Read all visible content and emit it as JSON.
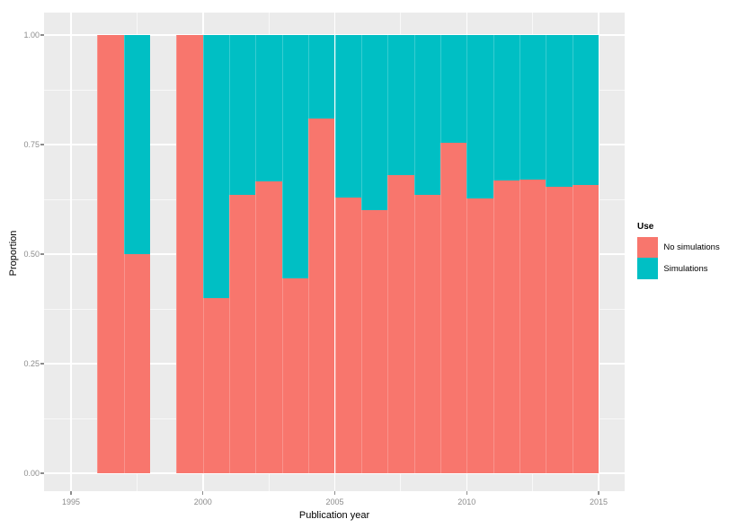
{
  "chart_data": {
    "type": "bar",
    "subtype": "stacked-proportion",
    "title": "",
    "xlabel": "Publication year",
    "ylabel": "Proportion",
    "grid": true,
    "legend_position": "right",
    "legend": {
      "title": "Use"
    },
    "x_domain": [
      1994,
      2016
    ],
    "ylim": [
      0,
      1
    ],
    "x_ticks": [
      {
        "v": 1995,
        "label": "1995"
      },
      {
        "v": 2000,
        "label": "2000"
      },
      {
        "v": 2005,
        "label": "2005"
      },
      {
        "v": 2010,
        "label": "2010"
      },
      {
        "v": 2015,
        "label": "2015"
      }
    ],
    "x_minor_ticks": [
      1997.5,
      2002.5,
      2007.5,
      2012.5
    ],
    "y_ticks": [
      {
        "v": 0.0,
        "label": "0.00"
      },
      {
        "v": 0.25,
        "label": "0.25"
      },
      {
        "v": 0.5,
        "label": "0.50"
      },
      {
        "v": 0.75,
        "label": "0.75"
      },
      {
        "v": 1.0,
        "label": "1.00"
      }
    ],
    "y_minor_ticks": [
      0.125,
      0.375,
      0.625,
      0.875
    ],
    "bar_width_years": 1,
    "categories": [
      1996,
      1997,
      1998,
      1999,
      2000,
      2001,
      2002,
      2003,
      2004,
      2005,
      2006,
      2007,
      2008,
      2009,
      2010,
      2011,
      2012,
      2013,
      2014
    ],
    "series": [
      {
        "name": "No simulations",
        "color": "#F8766D",
        "values": [
          1.0,
          0.5,
          null,
          1.0,
          0.4,
          0.635,
          0.667,
          0.445,
          0.81,
          0.63,
          0.6,
          0.68,
          0.635,
          0.755,
          0.627,
          0.668,
          0.671,
          0.653,
          0.657
        ]
      },
      {
        "name": "Simulations",
        "color": "#00BFC4",
        "values": [
          0.0,
          0.5,
          null,
          0.0,
          0.6,
          0.365,
          0.333,
          0.555,
          0.19,
          0.37,
          0.4,
          0.32,
          0.365,
          0.245,
          0.373,
          0.332,
          0.329,
          0.347,
          0.343
        ]
      }
    ]
  },
  "colors": {
    "panel_background": "#EBEBEB",
    "gridline": "#FFFFFF",
    "axis_text": "#8C8C8C",
    "axis_title": "#000000",
    "figure_background": "#FFFFFF"
  }
}
